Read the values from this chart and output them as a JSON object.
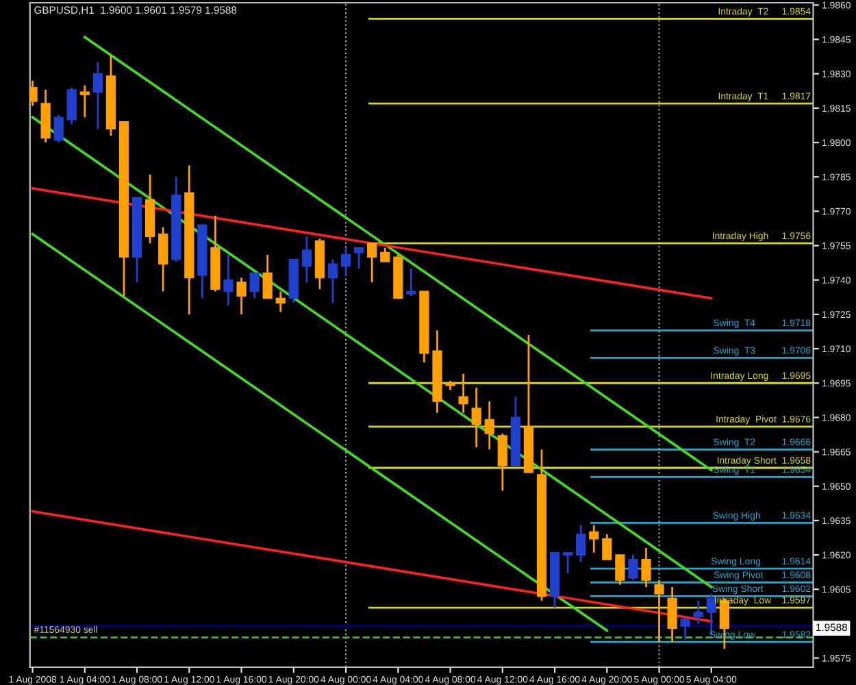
{
  "chart_data": {
    "type": "candlestick",
    "title": "GBPUSD,H1  1.9600 1.9601 1.9579 1.9588",
    "categories": [
      "1 Aug 2008",
      null,
      null,
      null,
      "1 Aug 04:00",
      null,
      null,
      null,
      "1 Aug 08:00",
      null,
      null,
      null,
      "1 Aug 12:00",
      null,
      null,
      null,
      "1 Aug 16:00",
      null,
      null,
      null,
      "1 Aug 20:00",
      null,
      null,
      null,
      "4 Aug 00:00",
      null,
      null,
      null,
      "4 Aug 04:00",
      null,
      null,
      null,
      "4 Aug 08:00",
      null,
      null,
      null,
      "4 Aug 12:00",
      null,
      null,
      null,
      "4 Aug 16:00",
      null,
      null,
      null,
      "4 Aug 20:00",
      null,
      null,
      null,
      "5 Aug 00:00",
      null,
      null,
      null,
      "5 Aug 04:00",
      null,
      null,
      null,
      null,
      null,
      null,
      null
    ],
    "ohlc": [
      [
        1.9824,
        1.9827,
        1.9816,
        1.9818
      ],
      [
        1.9817,
        1.9823,
        1.98,
        1.9802
      ],
      [
        1.9801,
        1.9812,
        1.98,
        1.9811
      ],
      [
        1.981,
        1.9824,
        1.9808,
        1.9823
      ],
      [
        1.9822,
        1.9825,
        1.9811,
        1.9821
      ],
      [
        1.9822,
        1.9835,
        1.9806,
        1.983
      ],
      [
        1.9829,
        1.9838,
        1.9803,
        1.9806
      ],
      [
        1.9809,
        1.9809,
        1.9733,
        1.975
      ],
      [
        1.975,
        1.9776,
        1.9739,
        1.9776
      ],
      [
        1.9775,
        1.9786,
        1.9756,
        1.9759
      ],
      [
        1.976,
        1.9763,
        1.9735,
        1.9747
      ],
      [
        1.9749,
        1.9785,
        1.9748,
        1.9777
      ],
      [
        1.9778,
        1.979,
        1.9725,
        1.9741
      ],
      [
        1.9742,
        1.9764,
        1.9732,
        1.9764
      ],
      [
        1.9754,
        1.9768,
        1.9735,
        1.9736
      ],
      [
        1.9735,
        1.9751,
        1.9729,
        1.974
      ],
      [
        1.9739,
        1.9741,
        1.9725,
        1.9733
      ],
      [
        1.9735,
        1.9743,
        1.9732,
        1.9743
      ],
      [
        1.9743,
        1.9751,
        1.9732,
        1.9732
      ],
      [
        1.9732,
        1.9735,
        1.9726,
        1.973
      ],
      [
        1.9732,
        1.9749,
        1.973,
        1.9749
      ],
      [
        1.9746,
        1.9759,
        1.9739,
        1.9753
      ],
      [
        1.9757,
        1.9758,
        1.9736,
        1.9741
      ],
      [
        1.9741,
        1.9749,
        1.973,
        1.9747
      ],
      [
        1.9746,
        1.9754,
        1.9742,
        1.9751
      ],
      [
        1.9752,
        1.9754,
        1.9745,
        1.9754
      ],
      [
        1.9756,
        1.9756,
        1.9739,
        1.975
      ],
      [
        1.9752,
        1.9754,
        1.9748,
        1.9748
      ],
      [
        1.975,
        1.9751,
        1.9732,
        1.9732
      ],
      [
        1.9734,
        1.9745,
        1.9733,
        1.9735
      ],
      [
        1.9735,
        1.9735,
        1.9704,
        1.9708
      ],
      [
        1.9709,
        1.9718,
        1.9682,
        1.9687
      ],
      [
        1.9695,
        1.9696,
        1.9692,
        1.9694
      ],
      [
        1.9689,
        1.9699,
        1.9682,
        1.9686
      ],
      [
        1.9684,
        1.9693,
        1.9667,
        1.9677
      ],
      [
        1.9679,
        1.9687,
        1.9666,
        1.9673
      ],
      [
        1.9672,
        1.9673,
        1.9648,
        1.9659
      ],
      [
        1.9659,
        1.9689,
        1.9659,
        1.968
      ],
      [
        1.9676,
        1.9716,
        1.9656,
        1.9656
      ],
      [
        1.9655,
        1.9666,
        1.96,
        1.9602
      ],
      [
        1.9602,
        1.9621,
        1.9597,
        1.9621
      ],
      [
        1.962,
        1.9621,
        1.9612,
        1.9621
      ],
      [
        1.962,
        1.9633,
        1.9617,
        1.9629
      ],
      [
        1.963,
        1.9633,
        1.9621,
        1.9627
      ],
      [
        1.9627,
        1.9629,
        1.9618,
        1.9618
      ],
      [
        1.962,
        1.962,
        1.9607,
        1.9609
      ],
      [
        1.961,
        1.962,
        1.9609,
        1.9618
      ],
      [
        1.9618,
        1.9623,
        1.9606,
        1.9609
      ],
      [
        1.9607,
        1.9609,
        1.9582,
        1.9603
      ],
      [
        1.9601,
        1.9606,
        1.9582,
        1.9588
      ],
      [
        1.9589,
        1.9592,
        1.9583,
        1.9592
      ],
      [
        1.9593,
        1.96,
        1.959,
        1.9595
      ],
      [
        1.9595,
        1.9603,
        1.9585,
        1.9601
      ],
      [
        1.96,
        1.9601,
        1.9579,
        1.9588
      ],
      null,
      null,
      null,
      null,
      null,
      null
    ],
    "colors": [
      "#ffa000",
      "#ffa000",
      "#2040d0",
      "#2040d0",
      "#ffa000",
      "#2040d0",
      "#ffa000",
      "#ffa000",
      "#2040d0",
      "#ffa000",
      "#ffa000",
      "#2040d0",
      "#ffa000",
      "#2040d0",
      "#ffa000",
      "#2040d0",
      "#ffa000",
      "#2040d0",
      "#ffa000",
      "#ffa000",
      "#2040d0",
      "#2040d0",
      "#ffa000",
      "#2040d0",
      "#2040d0",
      "#2040d0",
      "#ffa000",
      "#ffa000",
      "#ffa000",
      "#2040d0",
      "#ffa000",
      "#ffa000",
      "#ffa000",
      "#ffa000",
      "#ffa000",
      "#ffa000",
      "#ffa000",
      "#2040d0",
      "#ffa000",
      "#ffa000",
      "#2040d0",
      "#2040d0",
      "#2040d0",
      "#ffa000",
      "#ffa000",
      "#ffa000",
      "#2040d0",
      "#ffa000",
      "#ffa000",
      "#ffa000",
      "#2040d0",
      "#2040d0",
      "#2040d0",
      "#ffa000",
      null,
      null,
      null,
      null,
      null,
      null
    ],
    "series": [
      {
        "type": "line",
        "color": "#40e020",
        "line_style": "solid",
        "x": [
          "1 Aug 04:00",
          "5 Aug 04:00"
        ],
        "values": [
          1.9846,
          1.9657
        ]
      },
      {
        "type": "line",
        "color": "#40e020",
        "line_style": "solid",
        "x": [
          "1 Aug 2008",
          "5 Aug 04:00"
        ],
        "values": [
          1.9811,
          1.9606
        ]
      },
      {
        "type": "line",
        "color": "#40e020",
        "line_style": "solid",
        "x": [
          "1 Aug 2008",
          "4 Aug 20:00"
        ],
        "values": [
          1.976,
          1.9587
        ]
      },
      {
        "type": "line",
        "color": "#ff2020",
        "line_style": "solid",
        "x": [
          "1 Aug 2008",
          "5 Aug 04:00"
        ],
        "values": [
          1.978,
          1.9732
        ]
      },
      {
        "type": "line",
        "color": "#ff2020",
        "line_style": "solid",
        "x": [
          "1 Aug 2008",
          "5 Aug 04:00"
        ],
        "values": [
          1.9639,
          1.9591
        ]
      }
    ],
    "ylim": [
      1.9571,
      1.9861
    ],
    "yticks": [
      1.9575,
      {
        "value": 1.959,
        "label": null
      },
      1.9605,
      {
        "value": 1.962,
        "label": "1.9620"
      },
      1.9635,
      {
        "value": 1.965,
        "label": "1.9650"
      },
      1.9665,
      {
        "value": 1.968,
        "label": "1.9680"
      },
      1.9695,
      {
        "value": 1.971,
        "label": "1.9710"
      },
      1.9725,
      {
        "value": 1.974,
        "label": "1.9740"
      },
      1.9755,
      {
        "value": 1.977,
        "label": "1.9770"
      },
      1.9785,
      {
        "value": 1.98,
        "label": "1.9800"
      },
      1.9815,
      {
        "value": 1.983,
        "label": "1.9830"
      },
      1.9845,
      {
        "value": 1.986,
        "label": "1.9860"
      }
    ],
    "ref_lines": [
      {
        "axis": "x",
        "value": "4 Aug 00:00",
        "color": "#a0a0a0",
        "line_style": "dotted"
      },
      {
        "axis": "x",
        "value": "5 Aug 00:00",
        "color": "#a0a0a0",
        "line_style": "dotted"
      },
      {
        "axis": "y",
        "value": 1.9854,
        "label": "Intraday  T2     1.9854",
        "color": "#d8d820"
      },
      {
        "axis": "y",
        "value": 1.9817,
        "label": "Intraday  T1     1.9817",
        "color": "#d8d820"
      },
      {
        "axis": "y",
        "value": 1.9756,
        "label": "Intraday High     1.9756",
        "color": "#d8d820"
      },
      {
        "axis": "y",
        "value": 1.9718,
        "label": "Swing  T4          1.9718",
        "color": "#20a8d0"
      },
      {
        "axis": "y",
        "value": 1.9706,
        "label": "Swing  T3          1.9706",
        "color": "#20a8d0"
      },
      {
        "axis": "y",
        "value": 1.9695,
        "label": "Intraday Long     1.9695",
        "color": "#d8d820"
      },
      {
        "axis": "y",
        "value": 1.9676,
        "label": "Intraday  Pivot  1.9676",
        "color": "#d8d820"
      },
      {
        "axis": "y",
        "value": 1.9666,
        "label": "Swing  T2          1.9666",
        "color": "#20a8d0"
      },
      {
        "axis": "y",
        "value": 1.9658,
        "label": "Intraday Short  1.9658",
        "color": "#d8d820"
      },
      {
        "axis": "y",
        "value": 1.9654,
        "label": "Swing  T1          1.9654",
        "color": "#20a8d0"
      },
      {
        "axis": "y",
        "value": 1.9634,
        "label": "Swing High        1.9634",
        "color": "#20a8d0"
      },
      {
        "axis": "y",
        "value": 1.9614,
        "label": "Swing Long        1.9614",
        "color": "#20a8d0"
      },
      {
        "axis": "y",
        "value": 1.9608,
        "label": "Swing Pivot       1.9608",
        "color": "#20a8d0"
      },
      {
        "axis": "y",
        "value": 1.9602,
        "label": "Swing Short       1.9602",
        "color": "#20a8d0"
      },
      {
        "axis": "y",
        "value": 1.9597,
        "label": "Intraday  Low    1.9597",
        "color": "#d8d820"
      },
      {
        "axis": "y",
        "value": 1.9582,
        "label": "Swing Low          1.9582",
        "color": "#20a8d0"
      },
      {
        "axis": "y",
        "value": 1.9589,
        "label": "#11564930 sell",
        "color": "#000090"
      },
      {
        "axis": "y",
        "value": 1.9584,
        "color": "#30c030",
        "line_style": "dashed"
      }
    ],
    "annotations": [
      {
        "text": "1.9588",
        "y": 1.9588
      }
    ],
    "grid": false,
    "legend": false
  }
}
